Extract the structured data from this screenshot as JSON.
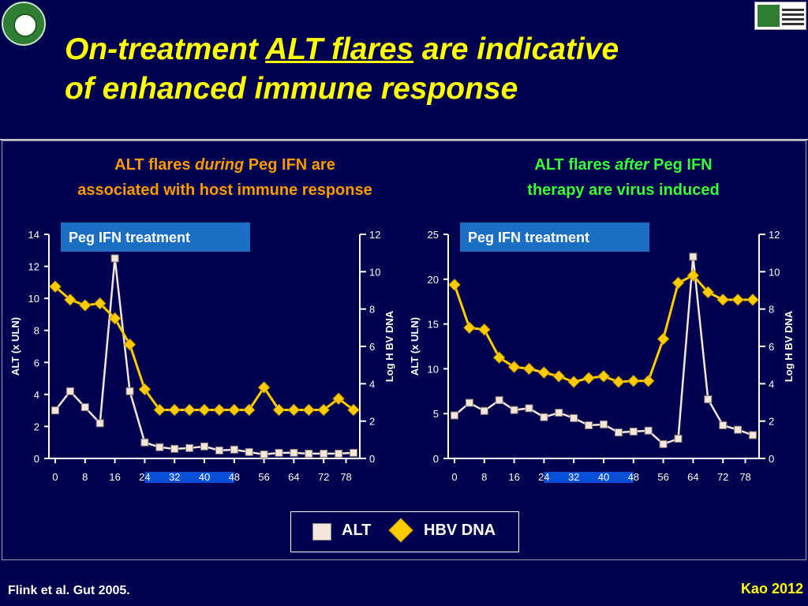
{
  "title": {
    "part1": "On-treatment ",
    "underlined": "ALT flares",
    "part2": " are indicative",
    "line2": "of enhanced immune response"
  },
  "left_panel": {
    "heading_pre": "ALT flares ",
    "heading_italic": "during",
    "heading_post": " Peg IFN are",
    "heading_line2": "associated with host immune response"
  },
  "right_panel": {
    "heading_pre": "ALT flares ",
    "heading_italic": "after",
    "heading_post": " Peg IFN",
    "heading_line2": "therapy are virus induced"
  },
  "legend": {
    "alt_label": "ALT",
    "hbv_label": "HBV DNA"
  },
  "footer": {
    "citation": "Flink et al. Gut 2005.",
    "credit": "Kao 2012"
  },
  "colors": {
    "background": "#000050",
    "title": "#ffff00",
    "alt_line": "#f5e6dc",
    "hbv_line": "#ffcc00",
    "treatment_box": "#1a6fc4",
    "treatment_bar": "#0a4fd8",
    "left_heading": "#ff9900",
    "right_heading": "#33ff33"
  },
  "chart_data": [
    {
      "type": "line",
      "treatment_label": "Peg IFN treatment",
      "treatment_range": [
        24,
        48
      ],
      "ylabel": "ALT (x ULN)",
      "y2label": "Log H BV DNA",
      "xticks": [
        0,
        8,
        16,
        24,
        32,
        40,
        48,
        56,
        64,
        72,
        78
      ],
      "ylim": [
        0,
        14
      ],
      "yticks": [
        0,
        2,
        4,
        6,
        8,
        10,
        12,
        14
      ],
      "y2lim": [
        0,
        12
      ],
      "y2ticks": [
        0,
        2,
        4,
        6,
        8,
        10,
        12
      ],
      "series": [
        {
          "name": "ALT",
          "axis": "left",
          "x": [
            0,
            4,
            8,
            12,
            16,
            20,
            24,
            28,
            32,
            36,
            40,
            44,
            48,
            52,
            56,
            60,
            64,
            68,
            72,
            76,
            80
          ],
          "values": [
            3.0,
            4.2,
            3.2,
            2.2,
            12.5,
            4.2,
            1.0,
            0.7,
            0.6,
            0.65,
            0.75,
            0.5,
            0.55,
            0.4,
            0.25,
            0.35,
            0.35,
            0.3,
            0.3,
            0.3,
            0.35
          ]
        },
        {
          "name": "HBV DNA",
          "axis": "right",
          "x": [
            0,
            4,
            8,
            12,
            16,
            20,
            24,
            28,
            32,
            36,
            40,
            44,
            48,
            52,
            56,
            60,
            64,
            68,
            72,
            76,
            80
          ],
          "values": [
            9.2,
            8.5,
            8.2,
            8.3,
            7.5,
            6.1,
            3.7,
            2.6,
            2.6,
            2.6,
            2.6,
            2.6,
            2.6,
            2.6,
            3.8,
            2.6,
            2.6,
            2.6,
            2.6,
            3.2,
            2.6
          ]
        }
      ]
    },
    {
      "type": "line",
      "treatment_label": "Peg IFN treatment",
      "treatment_range": [
        24,
        48
      ],
      "ylabel": "ALT (x ULN)",
      "y2label": "Log H BV DNA",
      "xticks": [
        0,
        8,
        16,
        24,
        32,
        40,
        48,
        56,
        64,
        72,
        78
      ],
      "ylim": [
        0,
        25
      ],
      "yticks": [
        0,
        5,
        10,
        15,
        20,
        25
      ],
      "y2lim": [
        0,
        12
      ],
      "y2ticks": [
        0,
        2,
        4,
        6,
        8,
        10,
        12
      ],
      "series": [
        {
          "name": "ALT",
          "axis": "left",
          "x": [
            0,
            4,
            8,
            12,
            16,
            20,
            24,
            28,
            32,
            36,
            40,
            44,
            48,
            52,
            56,
            60,
            64,
            68,
            72,
            76,
            80
          ],
          "values": [
            4.8,
            6.2,
            5.3,
            6.5,
            5.4,
            5.6,
            4.6,
            5.1,
            4.5,
            3.7,
            3.8,
            2.9,
            3.0,
            3.1,
            1.6,
            2.2,
            22.5,
            6.6,
            3.7,
            3.2,
            2.6
          ]
        },
        {
          "name": "HBV DNA",
          "axis": "right",
          "x": [
            0,
            4,
            8,
            12,
            16,
            20,
            24,
            28,
            32,
            36,
            40,
            44,
            48,
            52,
            56,
            60,
            64,
            68,
            72,
            76,
            80
          ],
          "values": [
            9.3,
            7.0,
            6.9,
            5.4,
            4.9,
            4.8,
            4.6,
            4.4,
            4.1,
            4.3,
            4.4,
            4.1,
            4.15,
            4.15,
            6.4,
            9.4,
            9.8,
            8.9,
            8.5,
            8.5,
            8.5
          ]
        }
      ]
    }
  ]
}
